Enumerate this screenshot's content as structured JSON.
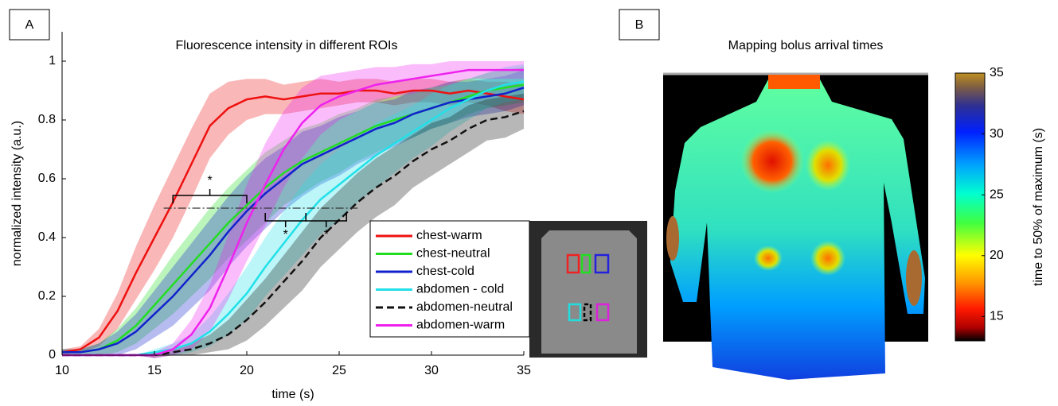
{
  "chart_data": [
    {
      "type": "line",
      "panel_label": "A",
      "title": "Fluorescence intensity in different ROIs",
      "xlabel": "time (s)",
      "ylabel": "normalized intensity (a.u.)",
      "xlim": [
        10,
        35
      ],
      "xticks": [
        10,
        15,
        20,
        25,
        30,
        35
      ],
      "ylim": [
        0,
        1.1
      ],
      "yticks": [
        0,
        0.2,
        0.4,
        0.6,
        0.8,
        1
      ],
      "x": [
        10,
        11,
        12,
        13,
        14,
        15,
        16,
        17,
        18,
        19,
        20,
        21,
        22,
        23,
        24,
        25,
        26,
        27,
        28,
        29,
        30,
        31,
        32,
        33,
        34,
        35
      ],
      "series": [
        {
          "name": "chest-warm",
          "color": "#ee1111",
          "dashed": false,
          "values": [
            0.01,
            0.02,
            0.06,
            0.15,
            0.28,
            0.4,
            0.52,
            0.65,
            0.78,
            0.84,
            0.87,
            0.88,
            0.87,
            0.88,
            0.89,
            0.89,
            0.9,
            0.9,
            0.89,
            0.9,
            0.9,
            0.89,
            0.9,
            0.89,
            0.88,
            0.87
          ],
          "error": [
            0.01,
            0.01,
            0.03,
            0.06,
            0.09,
            0.11,
            0.12,
            0.12,
            0.11,
            0.09,
            0.07,
            0.06,
            0.05,
            0.05,
            0.05,
            0.04,
            0.04,
            0.04,
            0.04,
            0.04,
            0.04,
            0.04,
            0.04,
            0.04,
            0.05,
            0.05
          ]
        },
        {
          "name": "chest-neutral",
          "color": "#22dd22",
          "dashed": false,
          "values": [
            0.01,
            0.01,
            0.02,
            0.05,
            0.1,
            0.17,
            0.24,
            0.31,
            0.38,
            0.45,
            0.51,
            0.57,
            0.62,
            0.66,
            0.69,
            0.72,
            0.75,
            0.78,
            0.8,
            0.82,
            0.84,
            0.86,
            0.88,
            0.9,
            0.91,
            0.92
          ],
          "error": [
            0.01,
            0.01,
            0.02,
            0.04,
            0.06,
            0.08,
            0.1,
            0.11,
            0.12,
            0.12,
            0.12,
            0.12,
            0.11,
            0.11,
            0.1,
            0.1,
            0.09,
            0.09,
            0.08,
            0.08,
            0.07,
            0.07,
            0.06,
            0.06,
            0.06,
            0.06
          ]
        },
        {
          "name": "chest-cold",
          "color": "#1122cc",
          "dashed": false,
          "values": [
            0.01,
            0.01,
            0.02,
            0.04,
            0.08,
            0.14,
            0.2,
            0.27,
            0.34,
            0.42,
            0.49,
            0.55,
            0.6,
            0.65,
            0.68,
            0.71,
            0.74,
            0.77,
            0.79,
            0.82,
            0.84,
            0.86,
            0.87,
            0.88,
            0.89,
            0.91
          ],
          "error": [
            0.01,
            0.01,
            0.02,
            0.04,
            0.06,
            0.08,
            0.1,
            0.11,
            0.12,
            0.12,
            0.12,
            0.12,
            0.11,
            0.11,
            0.1,
            0.1,
            0.09,
            0.09,
            0.08,
            0.08,
            0.07,
            0.07,
            0.06,
            0.06,
            0.06,
            0.06
          ]
        },
        {
          "name": "abdomen - cold",
          "color": "#22e0e8",
          "dashed": false,
          "values": [
            0,
            0,
            0,
            0,
            0,
            0.01,
            0.02,
            0.04,
            0.08,
            0.14,
            0.21,
            0.3,
            0.38,
            0.46,
            0.53,
            0.58,
            0.63,
            0.68,
            0.72,
            0.76,
            0.8,
            0.84,
            0.87,
            0.9,
            0.92,
            0.93
          ],
          "error": [
            0,
            0,
            0,
            0,
            0,
            0.01,
            0.02,
            0.03,
            0.05,
            0.07,
            0.09,
            0.1,
            0.11,
            0.12,
            0.12,
            0.12,
            0.11,
            0.11,
            0.1,
            0.09,
            0.09,
            0.08,
            0.07,
            0.06,
            0.06,
            0.06
          ]
        },
        {
          "name": "abdomen-neutral",
          "color": "#111111",
          "dashed": true,
          "values": [
            0,
            0,
            0,
            0,
            0,
            0,
            0.01,
            0.02,
            0.04,
            0.07,
            0.12,
            0.18,
            0.25,
            0.32,
            0.4,
            0.46,
            0.52,
            0.57,
            0.61,
            0.66,
            0.7,
            0.73,
            0.77,
            0.8,
            0.81,
            0.83
          ],
          "error": [
            0,
            0,
            0,
            0,
            0,
            0.01,
            0.01,
            0.02,
            0.03,
            0.05,
            0.07,
            0.08,
            0.09,
            0.1,
            0.1,
            0.1,
            0.1,
            0.1,
            0.1,
            0.09,
            0.09,
            0.08,
            0.08,
            0.07,
            0.07,
            0.06
          ]
        },
        {
          "name": "abdomen-warm",
          "color": "#ee22ee",
          "dashed": false,
          "values": [
            0,
            0,
            0,
            0,
            0,
            0,
            0.02,
            0.07,
            0.16,
            0.3,
            0.45,
            0.58,
            0.7,
            0.79,
            0.85,
            0.88,
            0.9,
            0.92,
            0.93,
            0.94,
            0.95,
            0.96,
            0.97,
            0.97,
            0.97,
            0.97
          ],
          "error": [
            0,
            0,
            0,
            0,
            0,
            0.01,
            0.02,
            0.05,
            0.08,
            0.11,
            0.13,
            0.14,
            0.13,
            0.12,
            0.1,
            0.08,
            0.07,
            0.06,
            0.05,
            0.05,
            0.04,
            0.04,
            0.03,
            0.03,
            0.03,
            0.03
          ]
        }
      ],
      "threshold": {
        "value": 0.5,
        "xrange": [
          15.5,
          26
        ]
      },
      "brackets": [
        {
          "x": [
            16,
            20
          ],
          "side": "above",
          "label": "*"
        },
        {
          "x": [
            21,
            23.2
          ],
          "side": "below",
          "label": "*"
        },
        {
          "x": [
            23.2,
            25.4
          ],
          "side": "below",
          "label": "*"
        }
      ]
    },
    {
      "type": "heatmap",
      "panel_label": "B",
      "title": "Mapping bolus arrival times",
      "ylabel": "time to 50% of maximum (s)",
      "ylim": [
        13,
        35
      ],
      "yticks": [
        15,
        20,
        25,
        30,
        35
      ]
    }
  ]
}
